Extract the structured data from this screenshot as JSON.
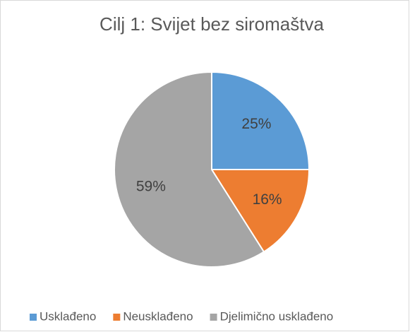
{
  "chart_data": {
    "type": "pie",
    "title": "Cilj 1: Svijet bez siromaštva",
    "categories": [
      "Usklađeno",
      "Neusklađeno",
      "Djelimično usklađeno"
    ],
    "values": [
      25,
      16,
      59
    ],
    "value_labels": [
      "25%",
      "16%",
      "59%"
    ],
    "colors": [
      "#5b9bd5",
      "#ed7d31",
      "#a5a5a5"
    ],
    "legend": "bottom"
  }
}
